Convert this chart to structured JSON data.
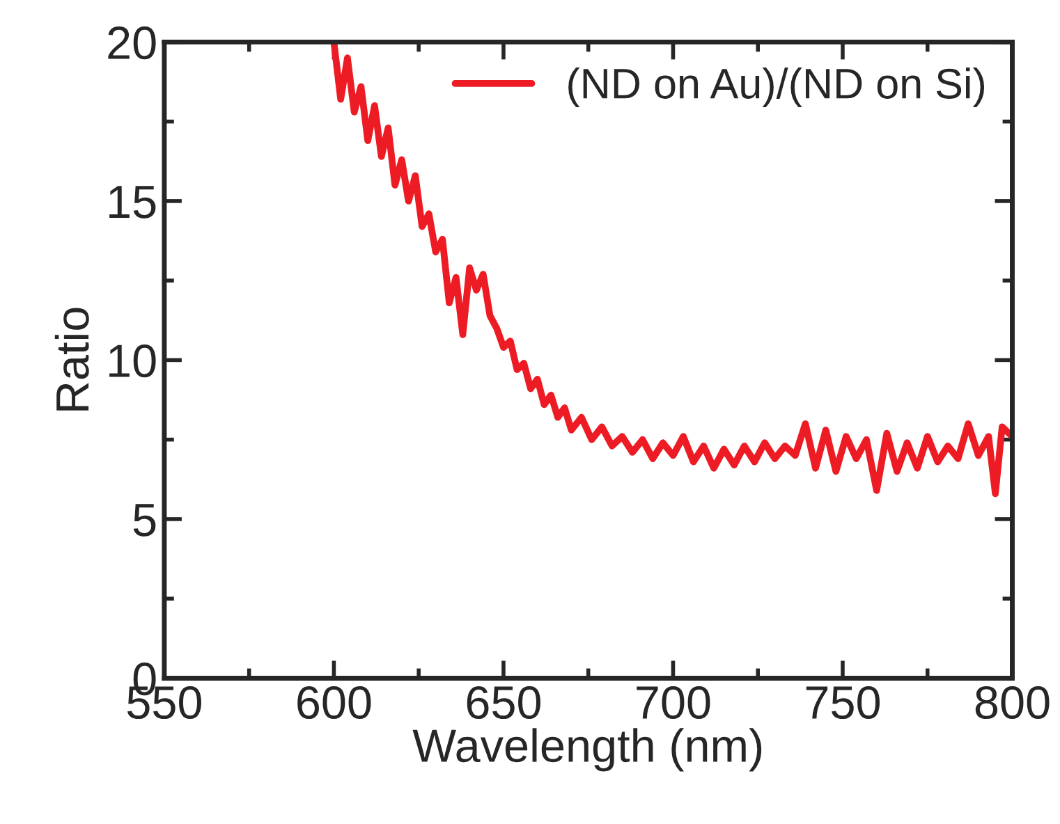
{
  "chart_data": {
    "type": "line",
    "xlabel": "Wavelength (nm)",
    "ylabel": "Ratio",
    "xlim": [
      550,
      800
    ],
    "ylim": [
      0,
      20
    ],
    "xticks": [
      550,
      600,
      650,
      700,
      750,
      800
    ],
    "yticks": [
      0,
      5,
      10,
      15,
      20
    ],
    "legend": "top right",
    "grid": false,
    "series": [
      {
        "name": "(ND on Au)/(ND on Si)",
        "color": "#ed1c24",
        "x": [
          600,
          602,
          604,
          606,
          608,
          610,
          612,
          614,
          616,
          618,
          620,
          622,
          624,
          626,
          628,
          630,
          632,
          634,
          636,
          638,
          640,
          642,
          644,
          646,
          648,
          650,
          652,
          654,
          656,
          658,
          660,
          662,
          664,
          666,
          668,
          670,
          673,
          676,
          679,
          682,
          685,
          688,
          691,
          694,
          697,
          700,
          703,
          706,
          709,
          712,
          715,
          718,
          721,
          724,
          727,
          730,
          733,
          736,
          739,
          742,
          745,
          748,
          751,
          754,
          757,
          760,
          763,
          766,
          769,
          772,
          775,
          778,
          781,
          784,
          787,
          790,
          793,
          795,
          797,
          800
        ],
        "values": [
          20.0,
          18.2,
          19.5,
          17.8,
          18.6,
          16.9,
          18.0,
          16.4,
          17.3,
          15.5,
          16.3,
          15.0,
          15.8,
          14.2,
          14.6,
          13.4,
          13.8,
          11.8,
          12.6,
          10.8,
          12.9,
          12.2,
          12.7,
          11.4,
          11.0,
          10.4,
          10.6,
          9.7,
          9.9,
          9.1,
          9.4,
          8.6,
          8.9,
          8.2,
          8.5,
          7.8,
          8.2,
          7.5,
          7.9,
          7.3,
          7.6,
          7.1,
          7.5,
          6.9,
          7.4,
          7.0,
          7.6,
          6.8,
          7.3,
          6.6,
          7.2,
          6.7,
          7.3,
          6.8,
          7.4,
          6.9,
          7.3,
          7.0,
          8.0,
          6.6,
          7.8,
          6.5,
          7.6,
          6.9,
          7.5,
          5.9,
          7.7,
          6.5,
          7.4,
          6.6,
          7.6,
          6.8,
          7.3,
          6.9,
          8.0,
          7.0,
          7.6,
          5.8,
          7.9,
          7.6
        ]
      }
    ]
  }
}
